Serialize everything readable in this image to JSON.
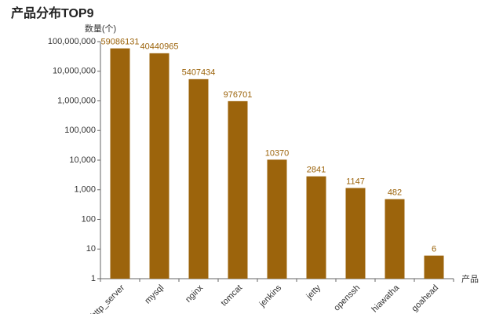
{
  "chart_data": {
    "type": "bar",
    "title": "产品分布TOP9",
    "y_label": "数量(个)",
    "x_label": "产品",
    "categories": [
      "http_server",
      "mysql",
      "nginx",
      "tomcat",
      "jenkins",
      "jetty",
      "openssh",
      "hiawatha",
      "goahead"
    ],
    "values": [
      59086131,
      40440965,
      5407434,
      976701,
      10370,
      2841,
      1147,
      482,
      6
    ],
    "color": "#9c640c",
    "label_color": "#9c640c",
    "log_scale": true,
    "ylim": [
      1,
      100000000
    ],
    "yticks": [
      1,
      10,
      100,
      {
        "value": 1000,
        "label": "1,000"
      },
      {
        "value": 10000,
        "label": "10,000"
      },
      {
        "value": 100000,
        "label": "100,000"
      },
      {
        "value": 1000000,
        "label": "1,000,000"
      },
      {
        "value": 10000000,
        "label": "10,000,000"
      },
      {
        "value": 100000000,
        "label": "100,000,000"
      }
    ]
  }
}
